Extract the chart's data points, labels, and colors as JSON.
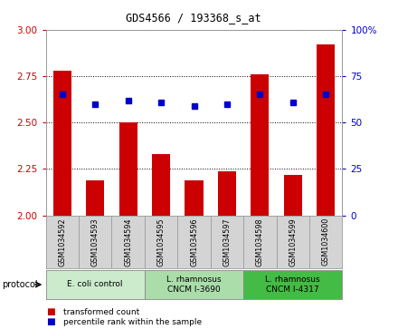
{
  "title": "GDS4566 / 193368_s_at",
  "samples": [
    "GSM1034592",
    "GSM1034593",
    "GSM1034594",
    "GSM1034595",
    "GSM1034596",
    "GSM1034597",
    "GSM1034598",
    "GSM1034599",
    "GSM1034600"
  ],
  "transformed_count": [
    2.78,
    2.19,
    2.5,
    2.33,
    2.19,
    2.24,
    2.76,
    2.22,
    2.92
  ],
  "percentile_rank": [
    65,
    60,
    62,
    61,
    59,
    60,
    65,
    61,
    65
  ],
  "ylim_left": [
    2.0,
    3.0
  ],
  "ylim_right": [
    0,
    100
  ],
  "yticks_left": [
    2.0,
    2.25,
    2.5,
    2.75,
    3.0
  ],
  "yticks_right": [
    0,
    25,
    50,
    75,
    100
  ],
  "bar_color": "#cc0000",
  "dot_color": "#0000cc",
  "group_labels": [
    "E. coli control",
    "L. rhamnosus\nCNCM I-3690",
    "L. rhamnosus\nCNCM I-4317"
  ],
  "group_starts": [
    0,
    3,
    6
  ],
  "group_ends": [
    3,
    6,
    9
  ],
  "group_colors": [
    "#cceacc",
    "#aaddaa",
    "#44bb44"
  ],
  "legend_labels": [
    "transformed count",
    "percentile rank within the sample"
  ],
  "legend_colors": [
    "#cc0000",
    "#0000cc"
  ],
  "protocol_label": "protocol",
  "sample_box_color": "#d4d4d4",
  "left_tick_color": "#cc0000",
  "right_tick_color": "#0000cc"
}
